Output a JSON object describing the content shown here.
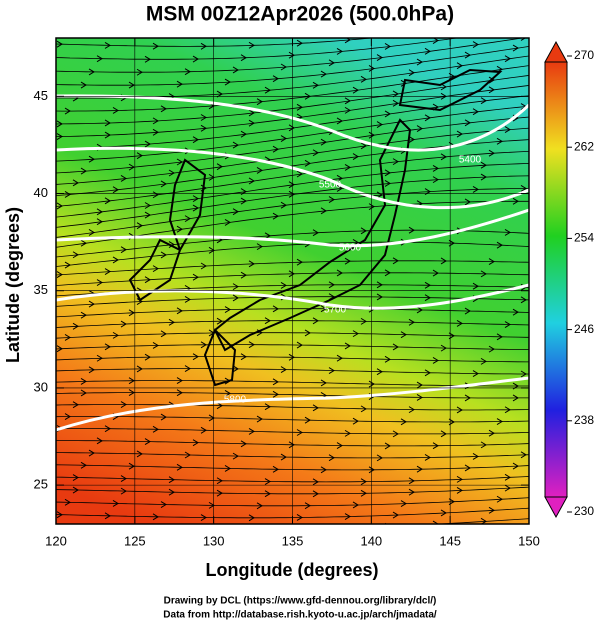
{
  "chart_data": {
    "type": "contour",
    "title": "MSM 00Z12Apr2026 (500.0hPa)",
    "x_label": "Longitude (degrees)",
    "y_label": "Latitude  (degrees)",
    "xlim": [
      120,
      150
    ],
    "xticks": [
      120,
      125,
      130,
      135,
      140,
      145,
      150
    ],
    "ylim": [
      23,
      48
    ],
    "yticks": [
      25,
      30,
      35,
      40,
      45
    ],
    "colorbar": {
      "lim": [
        230,
        270
      ],
      "ticks": [
        230,
        238,
        246,
        254,
        262,
        270
      ]
    },
    "contour_labels": [
      5400,
      5500,
      5600,
      5700,
      5800
    ]
  },
  "credits": [
    "Drawing by DCL (https://www.gfd-dennou.org/library/dcl/)",
    "Data from http://database.rish.kyoto-u.ac.jp/arch/jmadata/"
  ]
}
